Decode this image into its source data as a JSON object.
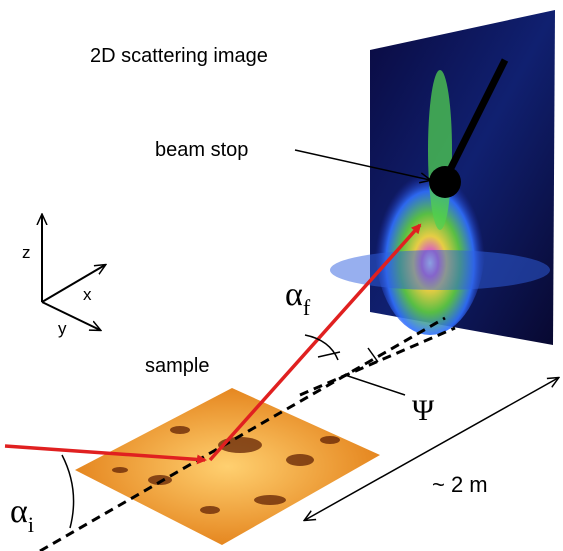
{
  "labels": {
    "detector": "2D scattering image",
    "beam_stop": "beam stop",
    "axis_z": "z",
    "axis_x": "x",
    "axis_y": "y",
    "sample": "sample",
    "alpha_f": {
      "symbol": "α",
      "subscript": "f"
    },
    "psi": "Ψ",
    "alpha_i": {
      "symbol": "α",
      "subscript": "i"
    },
    "distance": "~ 2 m"
  }
}
